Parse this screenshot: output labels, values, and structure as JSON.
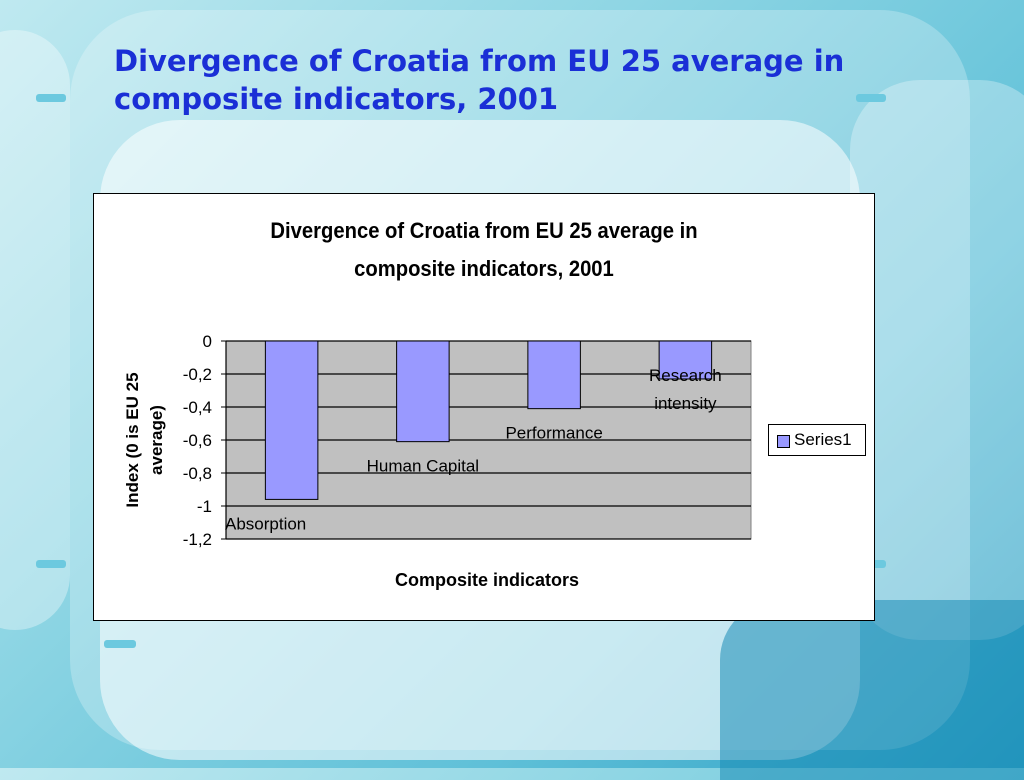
{
  "slide": {
    "title": "Divergence of Croatia from EU 25 average in composite indicators, 2001"
  },
  "chart_data": {
    "type": "bar",
    "title_lines": [
      "Divergence of Croatia from EU 25 average in",
      "composite indicators, 2001"
    ],
    "xlabel": "Composite indicators",
    "ylabel_lines": [
      "Index (0 is EU 25",
      "average)"
    ],
    "ylim": [
      -1.2,
      0
    ],
    "yticks": [
      0,
      -0.2,
      -0.4,
      -0.6,
      -0.8,
      -1,
      -1.2
    ],
    "ytick_labels": [
      "0",
      "-0,2",
      "-0,4",
      "-0,6",
      "-0,8",
      "-1",
      "-1,2"
    ],
    "grid": true,
    "legend_position": "right",
    "categories": [
      "Absorption",
      "Human Capital",
      "Performance",
      "Research intensity"
    ],
    "category_label_lines": [
      [
        "Absorption"
      ],
      [
        "Human Capital"
      ],
      [
        "Performance"
      ],
      [
        "Research",
        "intensity"
      ]
    ],
    "series": [
      {
        "name": "Series1",
        "values": [
          -0.96,
          -0.61,
          -0.41,
          -0.23
        ],
        "color": "#9999ff"
      }
    ],
    "plot_background": "#c0c0c0"
  }
}
